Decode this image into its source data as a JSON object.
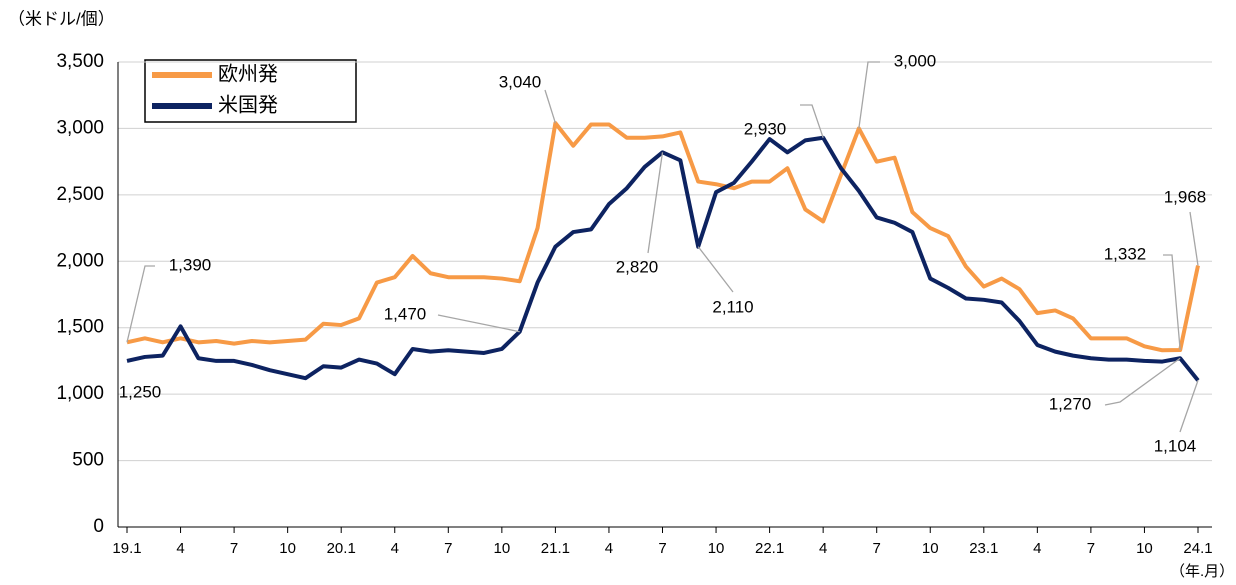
{
  "chart_data": {
    "type": "line",
    "y_label": "（米ドル/個）",
    "x_label": "（年.月）",
    "categories": [
      "19.1",
      null,
      null,
      "4",
      null,
      null,
      "7",
      null,
      null,
      "10",
      null,
      null,
      "20.1",
      null,
      null,
      "4",
      null,
      null,
      "7",
      null,
      null,
      "10",
      null,
      null,
      "21.1",
      null,
      null,
      "4",
      null,
      null,
      "7",
      null,
      null,
      "10",
      null,
      null,
      "22.1",
      null,
      null,
      "4",
      null,
      null,
      "7",
      null,
      null,
      "10",
      null,
      null,
      "23.1",
      null,
      null,
      "4",
      null,
      null,
      "7",
      null,
      null,
      "10",
      null,
      null,
      "24.1"
    ],
    "series": [
      {
        "name": "欧州発",
        "color": "#f79a46",
        "values": [
          1390,
          1420,
          1390,
          1420,
          1390,
          1400,
          1380,
          1400,
          1390,
          1400,
          1410,
          1530,
          1520,
          1570,
          1840,
          1880,
          2040,
          1910,
          1880,
          1880,
          1880,
          1870,
          1850,
          2250,
          3040,
          2870,
          3030,
          3030,
          2930,
          2930,
          2940,
          2970,
          2600,
          2580,
          2550,
          2600,
          2600,
          2700,
          2390,
          2300,
          2650,
          3000,
          2750,
          2780,
          2370,
          2250,
          2190,
          1960,
          1810,
          1870,
          1790,
          1610,
          1630,
          1570,
          1420,
          1420,
          1420,
          1360,
          1330,
          1332,
          1968
        ],
        "value_labels": [
          "1,390",
          null,
          null,
          null,
          null,
          null,
          null,
          null,
          null,
          null,
          null,
          null,
          null,
          null,
          null,
          null,
          null,
          null,
          null,
          null,
          null,
          null,
          null,
          null,
          "3,040",
          null,
          null,
          null,
          null,
          null,
          null,
          null,
          null,
          null,
          null,
          null,
          null,
          null,
          null,
          null,
          null,
          "3,000",
          null,
          null,
          null,
          null,
          null,
          null,
          null,
          null,
          null,
          null,
          null,
          null,
          null,
          null,
          null,
          null,
          null,
          "1,332",
          "1,968"
        ]
      },
      {
        "name": "米国発",
        "color": "#0d2361",
        "values": [
          1250,
          1280,
          1290,
          1510,
          1270,
          1250,
          1250,
          1220,
          1180,
          1150,
          1120,
          1210,
          1200,
          1260,
          1230,
          1150,
          1340,
          1320,
          1330,
          1320,
          1310,
          1340,
          1470,
          1840,
          2110,
          2220,
          2240,
          2430,
          2550,
          2710,
          2820,
          2760,
          2110,
          2520,
          2590,
          2750,
          2920,
          2820,
          2910,
          2930,
          2700,
          2530,
          2330,
          2290,
          2220,
          1870,
          1800,
          1720,
          1710,
          1690,
          1550,
          1370,
          1320,
          1290,
          1270,
          1260,
          1260,
          1250,
          1245,
          1270,
          1104
        ],
        "value_labels": [
          "1,250",
          null,
          null,
          null,
          null,
          null,
          null,
          null,
          null,
          null,
          null,
          null,
          null,
          null,
          null,
          null,
          null,
          null,
          null,
          null,
          null,
          null,
          "1,470",
          null,
          null,
          null,
          null,
          null,
          null,
          null,
          "2,820",
          null,
          "2,110",
          null,
          null,
          null,
          null,
          null,
          null,
          "2,930",
          null,
          null,
          null,
          null,
          null,
          null,
          null,
          null,
          null,
          null,
          null,
          null,
          null,
          null,
          null,
          null,
          null,
          null,
          null,
          "1,270",
          "1,104"
        ]
      }
    ],
    "ylim": [
      0,
      3500
    ],
    "yticks": [
      0,
      500,
      {
        "value": 1000,
        "label": "1,000"
      },
      {
        "value": 1500,
        "label": "1,500"
      },
      {
        "value": 2000,
        "label": "2,000"
      },
      {
        "value": 2500,
        "label": "2,500"
      },
      {
        "value": 3000,
        "label": "3,000"
      },
      {
        "value": 3500,
        "label": "3,500"
      }
    ],
    "grid": true
  }
}
